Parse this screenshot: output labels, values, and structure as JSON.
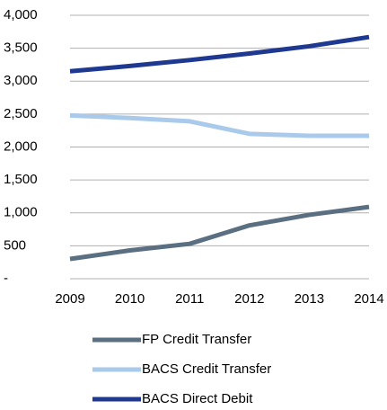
{
  "chart_data": {
    "type": "line",
    "x": [
      2009,
      2010,
      2011,
      2012,
      2013,
      2014
    ],
    "xlim": [
      2009,
      2014
    ],
    "xticks": [
      2009,
      2010,
      2011,
      2012,
      2013,
      2014
    ],
    "ylim": [
      0,
      4000
    ],
    "yticks": [
      {
        "value": 0,
        "label": "-"
      },
      500,
      {
        "value": 1000,
        "label": "1,000"
      },
      {
        "value": 1500,
        "label": "1,500"
      },
      {
        "value": 2000,
        "label": "2,000"
      },
      {
        "value": 2500,
        "label": "2,500"
      },
      {
        "value": 3000,
        "label": "3,000"
      },
      {
        "value": 3500,
        "label": "3,500"
      },
      {
        "value": 4000,
        "label": "4,000"
      }
    ],
    "grid": true,
    "legend": "bottom",
    "series": [
      {
        "name": "FP Credit Transfer",
        "color": "#5b6f82",
        "values": [
          300,
          430,
          530,
          810,
          970,
          1090
        ]
      },
      {
        "name": "BACS Credit Transfer",
        "color": "#a9caea",
        "values": [
          2480,
          2440,
          2390,
          2200,
          2170,
          2170
        ]
      },
      {
        "name": "BACS Direct Debit",
        "color": "#1f3990",
        "values": [
          3150,
          3230,
          3320,
          3420,
          3530,
          3670
        ]
      }
    ]
  }
}
